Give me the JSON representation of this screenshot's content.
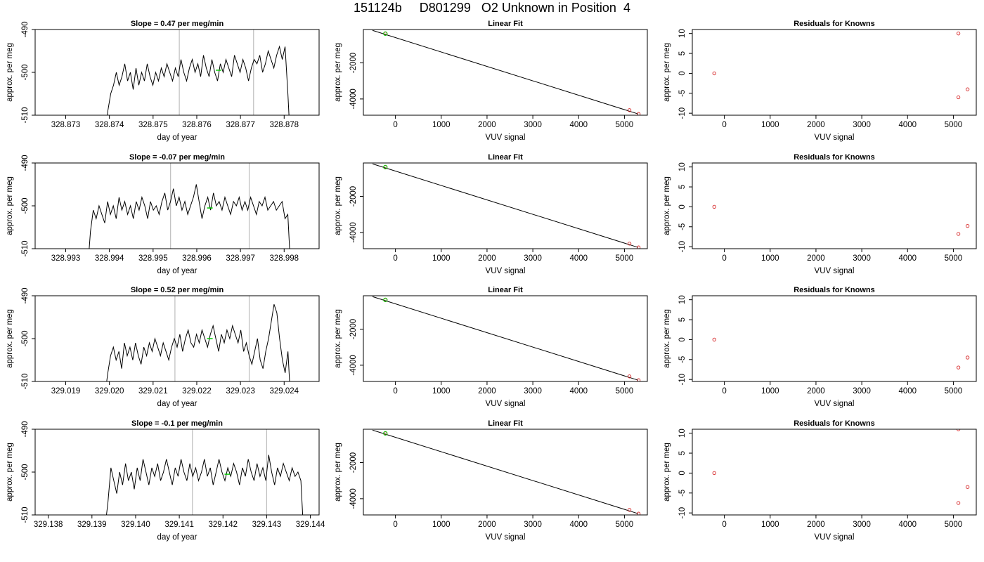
{
  "figure_title": "151124b     D801299   O2 Unknown in Position  4",
  "colors": {
    "trace": "#000000",
    "marker_lines": "#bebebe",
    "residual_points": "#d62728",
    "known_points": "#d62728",
    "highlight": "#00cc00"
  },
  "chart_data": [
    {
      "type": "line",
      "panel": "drift-1",
      "title": "Slope =  0.47  per meg/min",
      "xlabel": "day of year",
      "ylabel": "approx. per meg",
      "xlim": [
        328.8723,
        328.8788
      ],
      "ylim": [
        -510,
        -490
      ],
      "xticks": [
        "328.873",
        "328.874",
        "328.875",
        "328.876",
        "328.877",
        "328.878"
      ],
      "yticks": [
        "-510",
        "-500",
        "-490"
      ],
      "vlines": [
        328.8756,
        328.8773
      ],
      "green_point": [
        328.8765,
        -499.5
      ],
      "series": [
        {
          "x_start": 328.8739,
          "x_end": 328.87815,
          "values": [
            -515,
            -509,
            -505,
            -503,
            -500,
            -503,
            -501,
            -498,
            -502,
            -500,
            -504,
            -499,
            -503,
            -500,
            -502,
            -498,
            -501,
            -503,
            -500,
            -502,
            -499,
            -501,
            -498,
            -500,
            -502,
            -499,
            -501,
            -497,
            -500,
            -502,
            -499,
            -497,
            -500,
            -498,
            -501,
            -496,
            -499,
            -501,
            -497,
            -500,
            -502,
            -498,
            -500,
            -497,
            -499,
            -501,
            -496,
            -498,
            -500,
            -497,
            -499,
            -502,
            -499,
            -497,
            -498,
            -496,
            -500,
            -498,
            -495,
            -497,
            -499,
            -496,
            -494,
            -497,
            -494,
            -505,
            -518
          ]
        }
      ]
    },
    {
      "type": "scatter",
      "panel": "fit-1",
      "title": "Linear Fit",
      "xlabel": "VUV signal",
      "ylabel": "approx. per meg",
      "xlim": [
        -700,
        5500
      ],
      "ylim": [
        -4900,
        -150
      ],
      "xticks": [
        "0",
        "1000",
        "2000",
        "3000",
        "4000",
        "5000"
      ],
      "yticks": [
        "-4000",
        "-2000"
      ],
      "fit_line": [
        [
          -500,
          -200
        ],
        [
          5300,
          -4830
        ]
      ],
      "points": [
        [
          -220,
          -380
        ],
        [
          5110,
          -4620
        ],
        [
          5310,
          -4830
        ]
      ],
      "green_points": [
        [
          -220,
          -380
        ]
      ]
    },
    {
      "type": "scatter",
      "panel": "resid-1",
      "title": "Residuals for Knowns",
      "xlabel": "VUV signal",
      "ylabel": "approx. per meg",
      "xlim": [
        -700,
        5500
      ],
      "ylim": [
        -10.5,
        11
      ],
      "xticks": [
        "0",
        "1000",
        "2000",
        "3000",
        "4000",
        "5000"
      ],
      "yticks": [
        "-10",
        "-5",
        "0",
        "5",
        "10"
      ],
      "points": [
        [
          -220,
          0
        ],
        [
          5110,
          10
        ],
        [
          5110,
          -6
        ],
        [
          5310,
          -4
        ]
      ]
    },
    {
      "type": "line",
      "panel": "drift-2",
      "title": "Slope =  -0.07  per meg/min",
      "xlabel": "day of year",
      "ylabel": "approx. per meg",
      "xlim": [
        328.9923,
        328.9988
      ],
      "ylim": [
        -510,
        -490
      ],
      "xticks": [
        "328.993",
        "328.994",
        "328.995",
        "328.996",
        "328.997",
        "328.998"
      ],
      "yticks": [
        "-510",
        "-500",
        "-490"
      ],
      "vlines": [
        328.9954,
        328.9972
      ],
      "green_point": [
        328.9963,
        -500.5
      ],
      "series": [
        {
          "x_start": 328.9935,
          "x_end": 328.99815,
          "values": [
            -515,
            -506,
            -501,
            -503,
            -500,
            -502,
            -504,
            -499,
            -502,
            -500,
            -503,
            -498,
            -501,
            -499,
            -502,
            -500,
            -503,
            -499,
            -501,
            -498,
            -500,
            -503,
            -499,
            -501,
            -500,
            -502,
            -499,
            -497,
            -501,
            -499,
            -496,
            -500,
            -498,
            -501,
            -499,
            -502,
            -500,
            -498,
            -495,
            -499,
            -503,
            -500,
            -498,
            -501,
            -497,
            -500,
            -499,
            -501,
            -498,
            -500,
            -502,
            -499,
            -500,
            -498,
            -501,
            -499,
            -501,
            -498,
            -500,
            -502,
            -499,
            -500,
            -498,
            -501,
            -500,
            -499,
            -501,
            -500,
            -499,
            -503,
            -502,
            -515
          ]
        }
      ]
    },
    {
      "type": "scatter",
      "panel": "fit-2",
      "title": "Linear Fit",
      "xlabel": "VUV signal",
      "ylabel": "approx. per meg",
      "xlim": [
        -700,
        5500
      ],
      "ylim": [
        -4900,
        -150
      ],
      "xticks": [
        "0",
        "1000",
        "2000",
        "3000",
        "4000",
        "5000"
      ],
      "yticks": [
        "-4000",
        "-2000"
      ],
      "fit_line": [
        [
          -500,
          -200
        ],
        [
          5300,
          -4830
        ]
      ],
      "points": [
        [
          -220,
          -380
        ],
        [
          5110,
          -4620
        ],
        [
          5310,
          -4830
        ]
      ],
      "green_points": [
        [
          -220,
          -380
        ]
      ]
    },
    {
      "type": "scatter",
      "panel": "resid-2",
      "title": "Residuals for Knowns",
      "xlabel": "VUV signal",
      "ylabel": "approx. per meg",
      "xlim": [
        -700,
        5500
      ],
      "ylim": [
        -10.5,
        11
      ],
      "xticks": [
        "0",
        "1000",
        "2000",
        "3000",
        "4000",
        "5000"
      ],
      "yticks": [
        "-10",
        "-5",
        "0",
        "5",
        "10"
      ],
      "points": [
        [
          -220,
          0
        ],
        [
          5110,
          -6.8
        ],
        [
          5310,
          -4.8
        ]
      ]
    },
    {
      "type": "line",
      "panel": "drift-3",
      "title": "Slope =  0.52  per meg/min",
      "xlabel": "day of year",
      "ylabel": "approx. per meg",
      "xlim": [
        329.0183,
        329.0248
      ],
      "ylim": [
        -510,
        -490
      ],
      "xticks": [
        "329.019",
        "329.020",
        "329.021",
        "329.022",
        "329.023",
        "329.024"
      ],
      "yticks": [
        "-510",
        "-500",
        "-490"
      ],
      "vlines": [
        329.0215,
        329.0232
      ],
      "green_point": [
        329.0223,
        -500
      ],
      "series": [
        {
          "x_start": 329.0199,
          "x_end": 329.02415,
          "values": [
            -513,
            -508,
            -504,
            -502,
            -505,
            -503,
            -507,
            -501,
            -504,
            -502,
            -505,
            -501,
            -504,
            -506,
            -502,
            -504,
            -501,
            -503,
            -500,
            -502,
            -504,
            -501,
            -503,
            -505,
            -502,
            -500,
            -502,
            -499,
            -503,
            -500,
            -498,
            -501,
            -502,
            -499,
            -501,
            -498,
            -500,
            -502,
            -499,
            -497,
            -500,
            -503,
            -499,
            -501,
            -498,
            -500,
            -497,
            -499,
            -501,
            -498,
            -503,
            -501,
            -504,
            -506,
            -503,
            -500,
            -505,
            -507,
            -503,
            -500,
            -496,
            -492,
            -494,
            -500,
            -505,
            -508,
            -503,
            -515
          ]
        }
      ]
    },
    {
      "type": "scatter",
      "panel": "fit-3",
      "title": "Linear Fit",
      "xlabel": "VUV signal",
      "ylabel": "approx. per meg",
      "xlim": [
        -700,
        5500
      ],
      "ylim": [
        -4900,
        -150
      ],
      "xticks": [
        "0",
        "1000",
        "2000",
        "3000",
        "4000",
        "5000"
      ],
      "yticks": [
        "-4000",
        "-2000"
      ],
      "fit_line": [
        [
          -500,
          -200
        ],
        [
          5300,
          -4830
        ]
      ],
      "points": [
        [
          -220,
          -380
        ],
        [
          5110,
          -4620
        ],
        [
          5310,
          -4830
        ]
      ],
      "green_points": [
        [
          -220,
          -380
        ]
      ]
    },
    {
      "type": "scatter",
      "panel": "resid-3",
      "title": "Residuals for Knowns",
      "xlabel": "VUV signal",
      "ylabel": "approx. per meg",
      "xlim": [
        -700,
        5500
      ],
      "ylim": [
        -10.5,
        11
      ],
      "xticks": [
        "0",
        "1000",
        "2000",
        "3000",
        "4000",
        "5000"
      ],
      "yticks": [
        "-10",
        "-5",
        "0",
        "5",
        "10"
      ],
      "points": [
        [
          -220,
          0
        ],
        [
          5110,
          -7
        ],
        [
          5310,
          -4.5
        ]
      ]
    },
    {
      "type": "line",
      "panel": "drift-4",
      "title": "Slope =  -0.1  per meg/min",
      "xlabel": "day of year",
      "ylabel": "approx. per meg",
      "xlim": [
        329.1377,
        329.1442
      ],
      "ylim": [
        -510,
        -490
      ],
      "xticks": [
        "329.138",
        "329.139",
        "329.140",
        "329.141",
        "329.142",
        "329.143",
        "329.144"
      ],
      "yticks": [
        "-510",
        "-500",
        "-490"
      ],
      "vlines": [
        329.1413,
        329.143
      ],
      "green_point": [
        329.1421,
        -500.5
      ],
      "series": [
        {
          "x_start": 329.1393,
          "x_end": 329.14385,
          "values": [
            -513,
            -507,
            -499,
            -502,
            -505,
            -500,
            -503,
            -498,
            -502,
            -500,
            -504,
            -499,
            -502,
            -497,
            -500,
            -503,
            -499,
            -501,
            -498,
            -502,
            -500,
            -497,
            -500,
            -503,
            -499,
            -501,
            -497,
            -500,
            -502,
            -498,
            -501,
            -499,
            -502,
            -500,
            -497,
            -501,
            -499,
            -503,
            -500,
            -497,
            -500,
            -502,
            -499,
            -501,
            -498,
            -500,
            -503,
            -499,
            -501,
            -497,
            -500,
            -502,
            -498,
            -501,
            -499,
            -502,
            -496,
            -500,
            -503,
            -499,
            -501,
            -498,
            -500,
            -502,
            -499,
            -501,
            -500,
            -502,
            -515
          ]
        }
      ]
    },
    {
      "type": "scatter",
      "panel": "fit-4",
      "title": "Linear Fit",
      "xlabel": "VUV signal",
      "ylabel": "approx. per meg",
      "xlim": [
        -700,
        5500
      ],
      "ylim": [
        -4900,
        -150
      ],
      "xticks": [
        "0",
        "1000",
        "2000",
        "3000",
        "4000",
        "5000"
      ],
      "yticks": [
        "-4000",
        "-2000"
      ],
      "fit_line": [
        [
          -500,
          -200
        ],
        [
          5300,
          -4830
        ]
      ],
      "points": [
        [
          -220,
          -380
        ],
        [
          5110,
          -4620
        ],
        [
          5310,
          -4830
        ]
      ],
      "green_points": [
        [
          -220,
          -380
        ]
      ]
    },
    {
      "type": "scatter",
      "panel": "resid-4",
      "title": "Residuals for Knowns",
      "xlabel": "VUV signal",
      "ylabel": "approx. per meg",
      "xlim": [
        -700,
        5500
      ],
      "ylim": [
        -10.5,
        11
      ],
      "xticks": [
        "0",
        "1000",
        "2000",
        "3000",
        "4000",
        "5000"
      ],
      "yticks": [
        "-10",
        "-5",
        "0",
        "5",
        "10"
      ],
      "points": [
        [
          -220,
          0
        ],
        [
          5110,
          11
        ],
        [
          5110,
          -7.5
        ],
        [
          5310,
          -3.5
        ]
      ]
    }
  ]
}
